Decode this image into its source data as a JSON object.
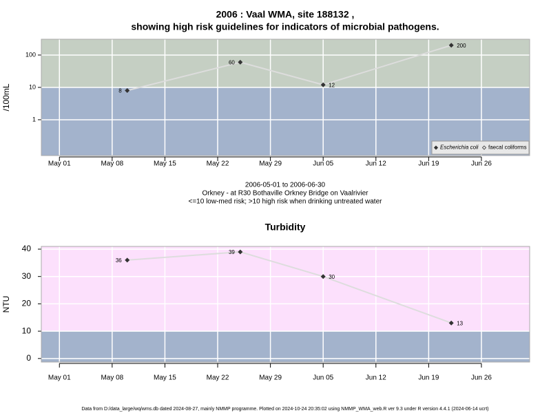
{
  "chart_data": [
    {
      "type": "line",
      "title": [
        "2006 : Vaal WMA, site 188132 ,",
        "showing high risk guidelines for indicators of microbial pathogens."
      ],
      "y_label": "/100mL",
      "log_y": true,
      "grid": true,
      "legend": "bottom right",
      "risk_threshold": 10,
      "band_colors": {
        "below": "#a3b3cc",
        "above": "#c5cfc3"
      },
      "x": [
        "2006-05-10",
        "2006-05-25",
        "2006-06-05",
        "2006-06-22"
      ],
      "series": [
        {
          "name": "Escherichia coli",
          "color": "#333333",
          "line_color": "#dddddd",
          "values": [
            8,
            60,
            12,
            200
          ]
        },
        {
          "name": "faecal coliforms",
          "color": "#333333",
          "line_color": "#dddddd",
          "values": [
            null,
            null,
            null,
            null
          ]
        }
      ],
      "xlim": [
        "2006-04-28T14:24:00Z",
        "2006-07-02T09:36:00Z"
      ],
      "xticks": [
        {
          "value": "2006-05-01",
          "label": "May 01"
        },
        {
          "value": "2006-05-08",
          "label": "May 08"
        },
        {
          "value": "2006-05-15",
          "label": "May 15"
        },
        {
          "value": "2006-05-22",
          "label": "May 22"
        },
        {
          "value": "2006-05-29",
          "label": "May 29"
        },
        {
          "value": "2006-06-05",
          "label": "Jun 05"
        },
        {
          "value": "2006-06-12",
          "label": "Jun 12"
        },
        {
          "value": "2006-06-19",
          "label": "Jun 19"
        },
        {
          "value": "2006-06-26",
          "label": "Jun 26"
        }
      ],
      "ylim": [
        0.078,
        308
      ],
      "yticks": [
        1,
        10,
        100
      ],
      "caption": [
        "2006-05-01 to 2006-06-30",
        "Orkney - at R30 Bothaville Orkney Bridge on Vaalrivier",
        "<=10 low-med risk; >10 high risk when drinking untreated water"
      ]
    },
    {
      "type": "line",
      "title": [
        "Turbidity"
      ],
      "y_label": "NTU",
      "log_y": false,
      "grid": true,
      "risk_threshold": 10,
      "band_colors": {
        "below": "#a3b3cc",
        "above": "#fce0fc"
      },
      "x": [
        "2006-05-10",
        "2006-05-25",
        "2006-06-05",
        "2006-06-22"
      ],
      "series": [
        {
          "name": "Turbidity",
          "color": "#333333",
          "line_color": "#dddddd",
          "values": [
            36,
            39,
            30,
            13
          ]
        }
      ],
      "xlim": [
        "2006-04-28T14:24:00Z",
        "2006-07-02T09:36:00Z"
      ],
      "xticks": [
        {
          "value": "2006-05-01",
          "label": "May 01"
        },
        {
          "value": "2006-05-08",
          "label": "May 08"
        },
        {
          "value": "2006-05-15",
          "label": "May 15"
        },
        {
          "value": "2006-05-22",
          "label": "May 22"
        },
        {
          "value": "2006-05-29",
          "label": "May 29"
        },
        {
          "value": "2006-06-05",
          "label": "Jun 05"
        },
        {
          "value": "2006-06-12",
          "label": "Jun 12"
        },
        {
          "value": "2006-06-19",
          "label": "Jun 19"
        },
        {
          "value": "2006-06-26",
          "label": "Jun 26"
        }
      ],
      "ylim": [
        -1.3,
        41
      ],
      "yticks": [
        0,
        10,
        20,
        30,
        40
      ]
    }
  ],
  "footer": "Data from D:/data_large/wq/wms.db dated 2024-08-27, mainly NMMP programme. Plotted on 2024-10-24 20:35:02 using NMMP_WMA_web.R ver 9.3 under R version 4.4.1 (2024-06-14 ucrt)"
}
